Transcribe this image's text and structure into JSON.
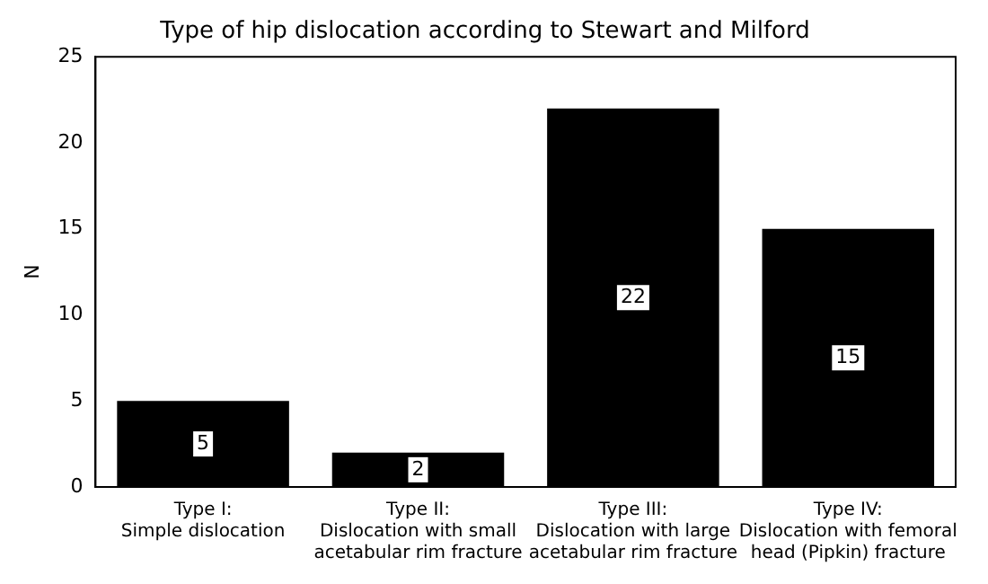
{
  "chart_data": {
    "type": "bar",
    "title": "Type of hip dislocation according to Stewart and Milford",
    "categories": [
      "Type I:\nSimple dislocation",
      "Type II:\nDislocation with small\nacetabular rim fracture",
      "Type III:\nDislocation with large\nacetabular rim fracture",
      "Type IV:\nDislocation with femoral\nhead (Pipkin) fracture"
    ],
    "values": [
      5,
      2,
      22,
      15
    ],
    "color": "#000000",
    "ylabel": "N",
    "ylim": [
      0,
      25
    ],
    "yticks": [
      0,
      5,
      10,
      15,
      20,
      25
    ],
    "grid": false,
    "legend": false,
    "data_labels": true
  }
}
